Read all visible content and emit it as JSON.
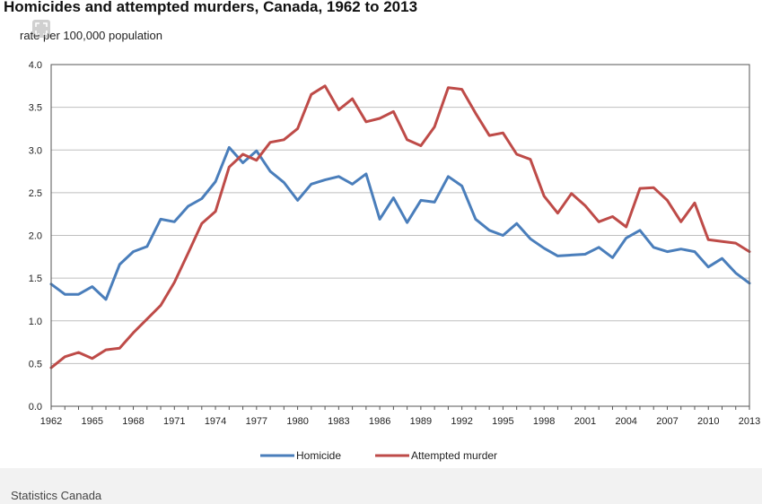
{
  "chart_data": {
    "type": "line",
    "title": "Homicides and attempted murders, Canada, 1962 to 2013",
    "subtitle": "rate per 100,000 population",
    "xlabel": "",
    "ylabel": "",
    "xlim": [
      1962,
      2013
    ],
    "ylim": [
      0,
      4.0
    ],
    "y_ticks": [
      "0.0",
      "0.5",
      "1.0",
      "1.5",
      "2.0",
      "2.5",
      "3.0",
      "3.5",
      "4.0"
    ],
    "x_ticks": [
      "1962",
      "1965",
      "1968",
      "1971",
      "1974",
      "1977",
      "1980",
      "1983",
      "1986",
      "1989",
      "1992",
      "1995",
      "1998",
      "2001",
      "2004",
      "2007",
      "2010",
      "2013"
    ],
    "grid": "horizontal",
    "legend_position": "bottom",
    "x": [
      1962,
      1963,
      1964,
      1965,
      1966,
      1967,
      1968,
      1969,
      1970,
      1971,
      1972,
      1973,
      1974,
      1975,
      1976,
      1977,
      1978,
      1979,
      1980,
      1981,
      1982,
      1983,
      1984,
      1985,
      1986,
      1987,
      1988,
      1989,
      1990,
      1991,
      1992,
      1993,
      1994,
      1995,
      1996,
      1997,
      1998,
      1999,
      2000,
      2001,
      2002,
      2003,
      2004,
      2005,
      2006,
      2007,
      2008,
      2009,
      2010,
      2011,
      2012,
      2013
    ],
    "series": [
      {
        "name": "Homicide",
        "color": "#4a7ebb",
        "values": [
          1.43,
          1.31,
          1.31,
          1.4,
          1.25,
          1.66,
          1.81,
          1.87,
          2.19,
          2.16,
          2.34,
          2.43,
          2.63,
          3.03,
          2.85,
          2.99,
          2.75,
          2.62,
          2.41,
          2.6,
          2.65,
          2.69,
          2.6,
          2.72,
          2.19,
          2.44,
          2.15,
          2.41,
          2.39,
          2.69,
          2.58,
          2.19,
          2.06,
          2.0,
          2.14,
          1.96,
          1.85,
          1.76,
          1.77,
          1.78,
          1.86,
          1.74,
          1.97,
          2.06,
          1.86,
          1.81,
          1.84,
          1.81,
          1.63,
          1.73,
          1.56,
          1.44
        ]
      },
      {
        "name": "Attempted murder",
        "color": "#be4b48",
        "values": [
          0.45,
          0.58,
          0.63,
          0.56,
          0.66,
          0.68,
          0.86,
          1.02,
          1.18,
          1.45,
          1.79,
          2.14,
          2.28,
          2.8,
          2.95,
          2.88,
          3.09,
          3.12,
          3.25,
          3.65,
          3.75,
          3.47,
          3.6,
          3.33,
          3.37,
          3.45,
          3.12,
          3.05,
          3.27,
          3.73,
          3.71,
          3.43,
          3.17,
          3.2,
          2.95,
          2.89,
          2.46,
          2.26,
          2.49,
          2.35,
          2.16,
          2.22,
          2.1,
          2.55,
          2.56,
          2.41,
          2.16,
          2.38,
          1.95,
          1.93,
          1.91,
          1.81
        ]
      }
    ]
  },
  "footer": {
    "source": "Statistics Canada"
  }
}
